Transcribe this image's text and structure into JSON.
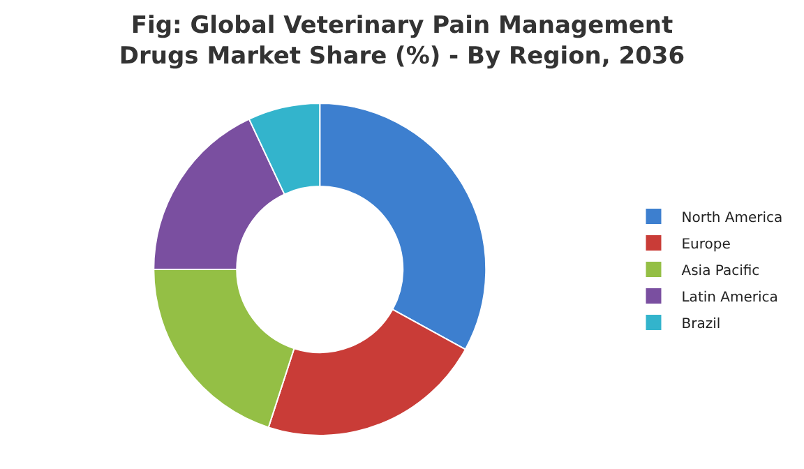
{
  "chart_data": {
    "type": "donut",
    "title": "Fig: Global Veterinary Pain Management\nDrugs Market Share (%) - By Region, 2036",
    "categories": [
      "North America",
      "Europe",
      "Asia Pacific",
      "Latin America",
      "Brazil"
    ],
    "values": [
      33,
      22,
      20,
      18,
      7
    ],
    "colors": [
      "#3d7fcf",
      "#c93c37",
      "#94bf45",
      "#7a4fa0",
      "#33b4cc"
    ],
    "legend": "right"
  }
}
